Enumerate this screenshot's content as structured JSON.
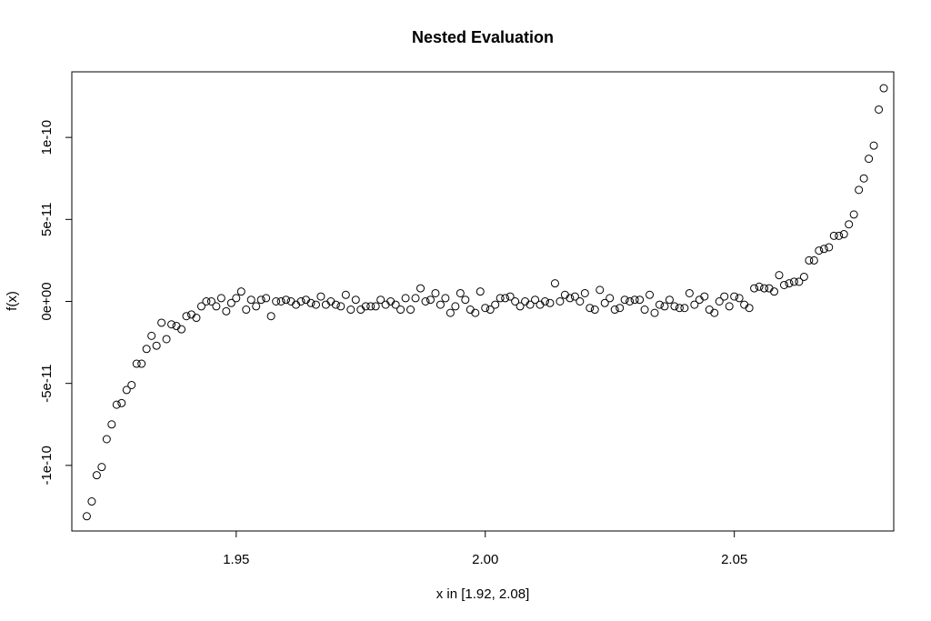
{
  "chart_data": {
    "type": "scatter",
    "title": "Nested Evaluation",
    "xlabel": "x in [1.92, 2.08]",
    "ylabel": "f(x)",
    "xlim": [
      1.917,
      2.082
    ],
    "ylim": [
      -1.4e-10,
      1.4e-10
    ],
    "grid": false,
    "legend": "none",
    "x_ticks": [
      {
        "value": 1.95,
        "label": "1.95"
      },
      {
        "value": 2.0,
        "label": "2.00"
      },
      {
        "value": 2.05,
        "label": "2.05"
      }
    ],
    "y_ticks": [
      {
        "value": -1e-10,
        "label": "-1e-10"
      },
      {
        "value": -5e-11,
        "label": "-5e-11"
      },
      {
        "value": 0,
        "label": "0e+00"
      },
      {
        "value": 5e-11,
        "label": "5e-11"
      },
      {
        "value": 1e-10,
        "label": "1e-10"
      }
    ],
    "x": [
      1.92,
      1.921,
      1.922,
      1.923,
      1.924,
      1.925,
      1.926,
      1.927,
      1.928,
      1.929,
      1.93,
      1.931,
      1.932,
      1.933,
      1.934,
      1.935,
      1.936,
      1.937,
      1.938,
      1.939,
      1.94,
      1.941,
      1.942,
      1.943,
      1.944,
      1.945,
      1.946,
      1.947,
      1.948,
      1.949,
      1.95,
      1.951,
      1.952,
      1.953,
      1.954,
      1.955,
      1.956,
      1.957,
      1.958,
      1.959,
      1.96,
      1.961,
      1.962,
      1.963,
      1.964,
      1.965,
      1.966,
      1.967,
      1.968,
      1.969,
      1.97,
      1.971,
      1.972,
      1.973,
      1.974,
      1.975,
      1.976,
      1.977,
      1.978,
      1.979,
      1.98,
      1.981,
      1.982,
      1.983,
      1.984,
      1.985,
      1.986,
      1.987,
      1.988,
      1.989,
      1.99,
      1.991,
      1.992,
      1.993,
      1.994,
      1.995,
      1.996,
      1.997,
      1.998,
      1.999,
      2.0,
      2.001,
      2.002,
      2.003,
      2.004,
      2.005,
      2.006,
      2.007,
      2.008,
      2.009,
      2.01,
      2.011,
      2.012,
      2.013,
      2.014,
      2.015,
      2.016,
      2.017,
      2.018,
      2.019,
      2.02,
      2.021,
      2.022,
      2.023,
      2.024,
      2.025,
      2.026,
      2.027,
      2.028,
      2.029,
      2.03,
      2.031,
      2.032,
      2.033,
      2.034,
      2.035,
      2.036,
      2.037,
      2.038,
      2.039,
      2.04,
      2.041,
      2.042,
      2.043,
      2.044,
      2.045,
      2.046,
      2.047,
      2.048,
      2.049,
      2.05,
      2.051,
      2.052,
      2.053,
      2.054,
      2.055,
      2.056,
      2.057,
      2.058,
      2.059,
      2.06,
      2.061,
      2.062,
      2.063,
      2.064,
      2.065,
      2.066,
      2.067,
      2.068,
      2.069,
      2.07,
      2.071,
      2.072,
      2.073,
      2.074,
      2.075,
      2.076,
      2.077,
      2.078,
      2.079,
      2.08
    ],
    "y": [
      -1.31e-10,
      -1.22e-10,
      -1.06e-10,
      -1.01e-10,
      -8.4e-11,
      -7.5e-11,
      -6.3e-11,
      -6.2e-11,
      -5.4e-11,
      -5.1e-11,
      -3.8e-11,
      -3.8e-11,
      -2.9e-11,
      -2.1e-11,
      -2.7e-11,
      -1.3e-11,
      -2.3e-11,
      -1.4e-11,
      -1.5e-11,
      -1.7e-11,
      -9e-12,
      -8e-12,
      -1e-11,
      -3e-12,
      0,
      0,
      -3e-12,
      2e-12,
      -6e-12,
      -1e-12,
      2e-12,
      6e-12,
      -5e-12,
      1e-12,
      -3e-12,
      1e-12,
      2e-12,
      -9e-12,
      0,
      0,
      1e-12,
      0,
      -2e-12,
      0,
      1e-12,
      -1e-12,
      -2e-12,
      3e-12,
      -2e-12,
      0,
      -2e-12,
      -3e-12,
      4e-12,
      -5e-12,
      1e-12,
      -5e-12,
      -3e-12,
      -3e-12,
      -3e-12,
      1e-12,
      -2e-12,
      0,
      -2e-12,
      -5e-12,
      2e-12,
      -5e-12,
      2e-12,
      8e-12,
      0,
      1e-12,
      5e-12,
      -2e-12,
      2e-12,
      -7e-12,
      -3e-12,
      5e-12,
      1e-12,
      -5e-12,
      -7e-12,
      6e-12,
      -4e-12,
      -5e-12,
      -2e-12,
      2e-12,
      2e-12,
      3e-12,
      0,
      -3e-12,
      0,
      -2e-12,
      1e-12,
      -2e-12,
      0,
      -1e-12,
      1.1e-11,
      0,
      4e-12,
      2e-12,
      3e-12,
      0,
      5e-12,
      -4e-12,
      -5e-12,
      7e-12,
      -1e-12,
      2e-12,
      -5e-12,
      -4e-12,
      1e-12,
      0,
      1e-12,
      1e-12,
      -5e-12,
      4e-12,
      -7e-12,
      -2e-12,
      -3e-12,
      1e-12,
      -3e-12,
      -4e-12,
      -4e-12,
      5e-12,
      -2e-12,
      1e-12,
      3e-12,
      -5e-12,
      -7e-12,
      0,
      3e-12,
      -3e-12,
      3e-12,
      2e-12,
      -2e-12,
      -4e-12,
      8e-12,
      9e-12,
      8e-12,
      8e-12,
      6e-12,
      1.6e-11,
      1e-11,
      1.1e-11,
      1.2e-11,
      1.2e-11,
      1.5e-11,
      2.5e-11,
      2.5e-11,
      3.1e-11,
      3.2e-11,
      3.3e-11,
      4e-11,
      4e-11,
      4.1e-11,
      4.7e-11,
      5.3e-11,
      6.8e-11,
      7.5e-11,
      8.7e-11,
      9.5e-11,
      1.17e-10,
      1.3e-10
    ]
  }
}
